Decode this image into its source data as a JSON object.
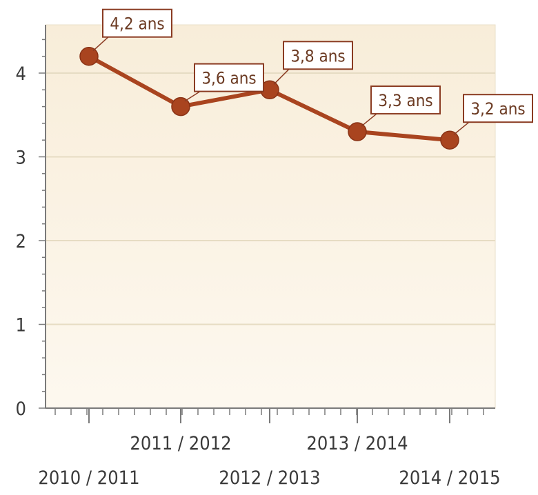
{
  "chart_data": {
    "type": "line",
    "title": "",
    "xlabel": "",
    "ylabel": "",
    "categories": [
      "2010 / 2011",
      "2011 / 2012",
      "2012 / 2013",
      "2013 / 2014",
      "2014 / 2015"
    ],
    "series": [
      {
        "values": [
          4.2,
          3.6,
          3.8,
          3.3,
          3.2
        ],
        "data_labels": [
          "4,2 ans",
          "3,6 ans",
          "3,8 ans",
          "3,3 ans",
          "3,2 ans"
        ]
      }
    ],
    "ylim": [
      0,
      4.5
    ],
    "yticks": [
      "0",
      "1",
      "2",
      "3",
      "4"
    ],
    "grid": true,
    "legend": "none",
    "colors": {
      "line": "#a9441f",
      "marker": "#a9441f",
      "plot_background_top": "#f8edd9",
      "plot_background_bottom": "#fdf8ef",
      "grid": "#e6dcc3",
      "axis": "#7a7a7a",
      "label_border": "#8a3b22"
    }
  }
}
